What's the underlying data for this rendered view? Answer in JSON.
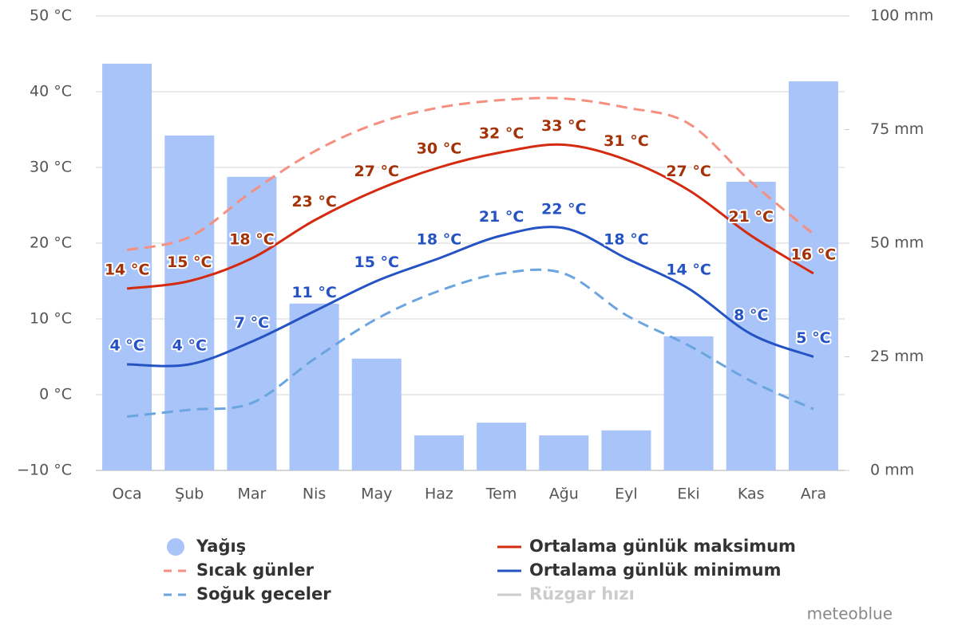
{
  "chart_data": {
    "type": "combo",
    "categories": [
      "Oca",
      "Şub",
      "Mar",
      "Nis",
      "May",
      "Haz",
      "Tem",
      "Ağu",
      "Eyl",
      "Eki",
      "Kas",
      "Ara"
    ],
    "ylim": [
      -10,
      50
    ],
    "yticks": [
      {
        "value": -10,
        "label": "−10 °C"
      },
      {
        "value": 0,
        "label": "0 °C"
      },
      {
        "value": 10,
        "label": "10 °C"
      },
      {
        "value": 20,
        "label": "20 °C"
      },
      {
        "value": 30,
        "label": "30 °C"
      },
      {
        "value": 40,
        "label": "40 °C"
      },
      {
        "value": 50,
        "label": "50 °C"
      }
    ],
    "y2lim": [
      0,
      100
    ],
    "y2ticks": [
      {
        "value": 0,
        "label": "0 mm"
      },
      {
        "value": 25,
        "label": "25 mm"
      },
      {
        "value": 50,
        "label": "50 mm"
      },
      {
        "value": 75,
        "label": "75 mm"
      },
      {
        "value": 100,
        "label": "100 mm"
      }
    ],
    "grid": true,
    "credit": "meteoblue",
    "series": [
      {
        "name": "Yağış",
        "type": "bar",
        "axis": "y2",
        "color": "#a8c4f8",
        "values": [
          89.5,
          73.7,
          64.6,
          36.7,
          24.6,
          7.7,
          10.5,
          7.7,
          8.8,
          29.5,
          63.5,
          85.6
        ]
      },
      {
        "name": "Ortalama günlük maksimum",
        "type": "line",
        "color": "#d42a0f",
        "label_color": "#a33208",
        "values": [
          14,
          15,
          18,
          23,
          27,
          30,
          32,
          33,
          31,
          27,
          21,
          16
        ],
        "value_labels": [
          "14 °C",
          "15 °C",
          "18 °C",
          "23 °C",
          "27 °C",
          "30 °C",
          "32 °C",
          "33 °C",
          "31 °C",
          "27 °C",
          "21 °C",
          "16 °C"
        ]
      },
      {
        "name": "Ortalama günlük minimum",
        "type": "line",
        "color": "#2553c4",
        "label_color": "#2553c4",
        "values": [
          4,
          4,
          7,
          11,
          15,
          18,
          21,
          22,
          18,
          14,
          8,
          5
        ],
        "value_labels": [
          "4 °C",
          "4 °C",
          "7 °C",
          "11 °C",
          "15 °C",
          "18 °C",
          "21 °C",
          "22 °C",
          "18 °C",
          "14 °C",
          "8 °C",
          "5 °C"
        ]
      },
      {
        "name": "Sıcak günler",
        "type": "line",
        "dashed": true,
        "color": "#f58f7f",
        "values": [
          19.1,
          20.8,
          26.8,
          32.1,
          35.8,
          37.9,
          38.9,
          39.1,
          37.9,
          35.8,
          28.1,
          21.2
        ]
      },
      {
        "name": "Soğuk geceler",
        "type": "line",
        "dashed": true,
        "color": "#6aa5e0",
        "values": [
          -2.9,
          -2.0,
          -1.1,
          4.7,
          10.0,
          13.7,
          16.0,
          16.0,
          10.5,
          6.5,
          1.8,
          -1.9
        ]
      },
      {
        "name": "Rüzgar hızı",
        "type": "line",
        "visible": false,
        "color": "#cccccc",
        "values": [
          null,
          null,
          null,
          null,
          null,
          null,
          null,
          null,
          null,
          null,
          null,
          null
        ]
      }
    ]
  }
}
